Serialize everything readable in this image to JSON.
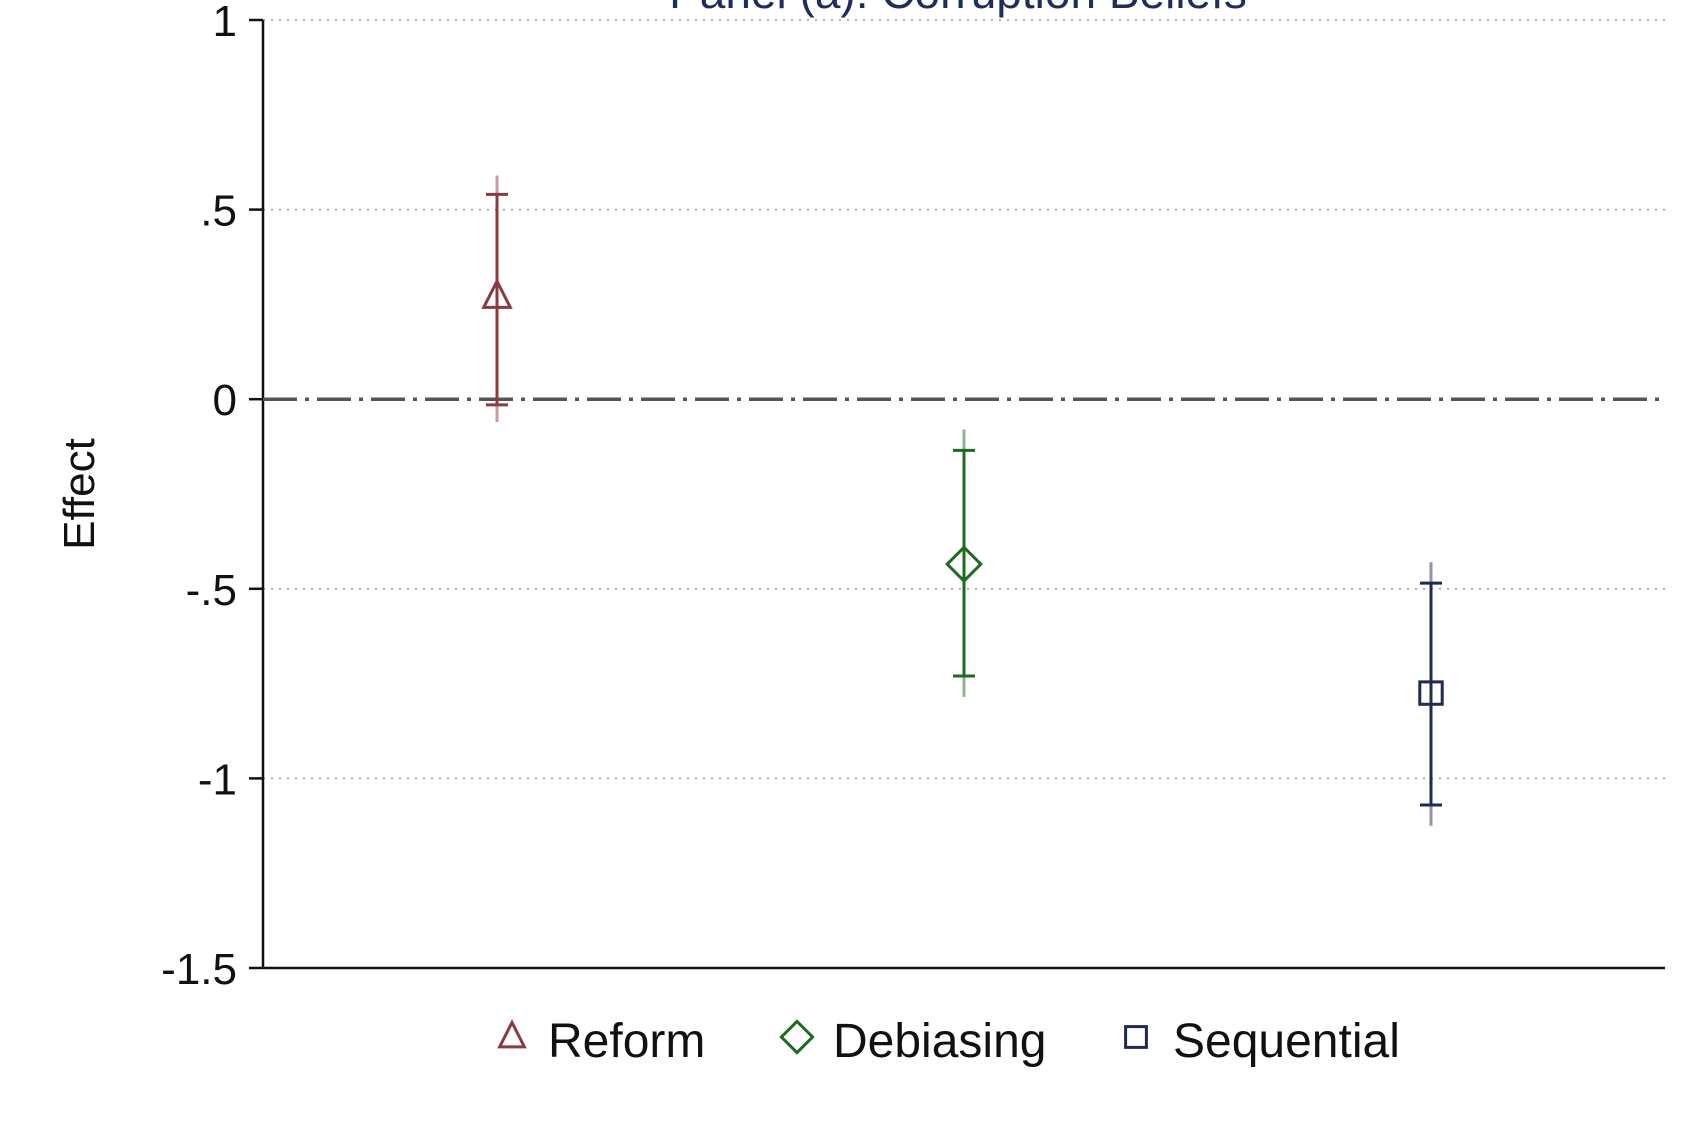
{
  "chart_data": {
    "type": "scatter",
    "title": "Panel (a): Corruption Beliefs",
    "ylabel": "Effect",
    "xlabel": "",
    "ylim": [
      -1.5,
      1
    ],
    "yticks": [
      {
        "value": 1,
        "label": "1"
      },
      {
        "value": 0.5,
        "label": ".5"
      },
      {
        "value": 0,
        "label": "0"
      },
      {
        "value": -0.5,
        "label": "-.5"
      },
      {
        "value": -1,
        "label": "-1"
      },
      {
        "value": -1.5,
        "label": "-1.5"
      }
    ],
    "grid": true,
    "reference_line": 0,
    "legend_position": "bottom",
    "series": [
      {
        "name": "Reform",
        "marker": "triangle",
        "color": "#8c3a42",
        "estimate": 0.27,
        "ci95": [
          -0.015,
          0.54
        ],
        "ci_outer": [
          -0.06,
          0.59
        ]
      },
      {
        "name": "Debiasing",
        "marker": "diamond",
        "color": "#1e6b1e",
        "estimate": -0.435,
        "ci95": [
          -0.73,
          -0.135
        ],
        "ci_outer": [
          -0.785,
          -0.08
        ]
      },
      {
        "name": "Sequential",
        "marker": "square",
        "color": "#1f2b4f",
        "estimate": -0.775,
        "ci95": [
          -1.07,
          -0.485
        ],
        "ci_outer": [
          -1.125,
          -0.43
        ]
      }
    ]
  }
}
